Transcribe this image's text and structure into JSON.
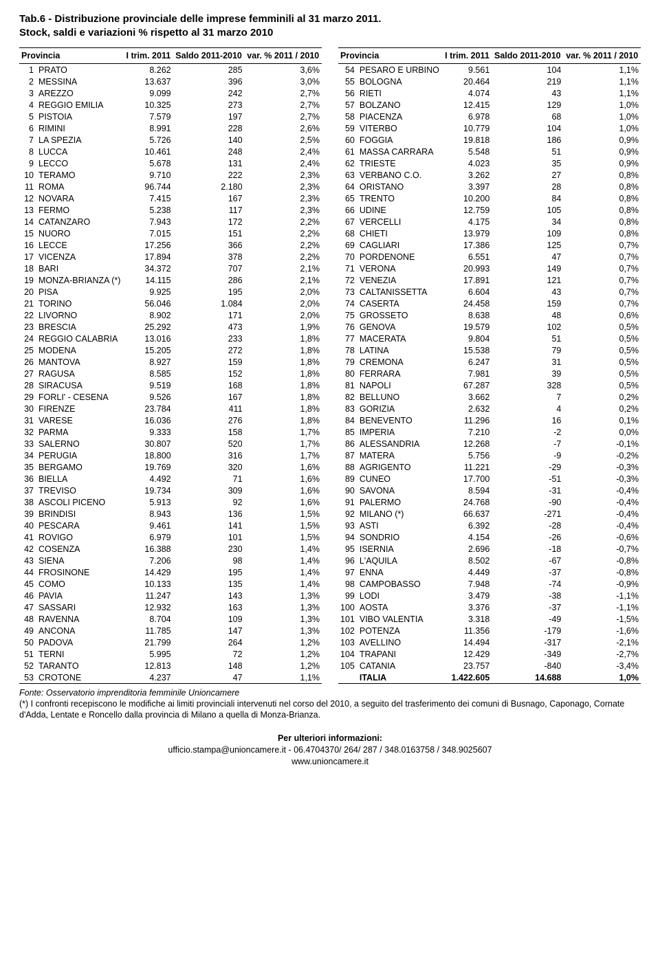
{
  "title_line1": "Tab.6 - Distribuzione provinciale delle imprese femminili al 31 marzo 2011.",
  "title_line2": "Stock, saldi e variazioni % rispetto al 31 marzo 2010",
  "headers": {
    "provincia": "Provincia",
    "itrim": "I trim. 2011",
    "saldo": "Saldo 2011-2010",
    "var": "var. % 2011 / 2010"
  },
  "table": {
    "left": [
      {
        "n": "1",
        "p": "PRATO",
        "v1": "8.262",
        "v2": "285",
        "v3": "3,6%"
      },
      {
        "n": "2",
        "p": "MESSINA",
        "v1": "13.637",
        "v2": "396",
        "v3": "3,0%"
      },
      {
        "n": "3",
        "p": "AREZZO",
        "v1": "9.099",
        "v2": "242",
        "v3": "2,7%"
      },
      {
        "n": "4",
        "p": "REGGIO EMILIA",
        "v1": "10.325",
        "v2": "273",
        "v3": "2,7%"
      },
      {
        "n": "5",
        "p": "PISTOIA",
        "v1": "7.579",
        "v2": "197",
        "v3": "2,7%"
      },
      {
        "n": "6",
        "p": "RIMINI",
        "v1": "8.991",
        "v2": "228",
        "v3": "2,6%"
      },
      {
        "n": "7",
        "p": "LA SPEZIA",
        "v1": "5.726",
        "v2": "140",
        "v3": "2,5%"
      },
      {
        "n": "8",
        "p": "LUCCA",
        "v1": "10.461",
        "v2": "248",
        "v3": "2,4%"
      },
      {
        "n": "9",
        "p": "LECCO",
        "v1": "5.678",
        "v2": "131",
        "v3": "2,4%"
      },
      {
        "n": "10",
        "p": "TERAMO",
        "v1": "9.710",
        "v2": "222",
        "v3": "2,3%"
      },
      {
        "n": "11",
        "p": "ROMA",
        "v1": "96.744",
        "v2": "2.180",
        "v3": "2,3%"
      },
      {
        "n": "12",
        "p": "NOVARA",
        "v1": "7.415",
        "v2": "167",
        "v3": "2,3%"
      },
      {
        "n": "13",
        "p": "FERMO",
        "v1": "5.238",
        "v2": "117",
        "v3": "2,3%"
      },
      {
        "n": "14",
        "p": "CATANZARO",
        "v1": "7.943",
        "v2": "172",
        "v3": "2,2%"
      },
      {
        "n": "15",
        "p": "NUORO",
        "v1": "7.015",
        "v2": "151",
        "v3": "2,2%"
      },
      {
        "n": "16",
        "p": "LECCE",
        "v1": "17.256",
        "v2": "366",
        "v3": "2,2%"
      },
      {
        "n": "17",
        "p": "VICENZA",
        "v1": "17.894",
        "v2": "378",
        "v3": "2,2%"
      },
      {
        "n": "18",
        "p": "BARI",
        "v1": "34.372",
        "v2": "707",
        "v3": "2,1%"
      },
      {
        "n": "19",
        "p": "MONZA-BRIANZA (*)",
        "v1": "14.115",
        "v2": "286",
        "v3": "2,1%"
      },
      {
        "n": "20",
        "p": "PISA",
        "v1": "9.925",
        "v2": "195",
        "v3": "2,0%"
      },
      {
        "n": "21",
        "p": "TORINO",
        "v1": "56.046",
        "v2": "1.084",
        "v3": "2,0%"
      },
      {
        "n": "22",
        "p": "LIVORNO",
        "v1": "8.902",
        "v2": "171",
        "v3": "2,0%"
      },
      {
        "n": "23",
        "p": "BRESCIA",
        "v1": "25.292",
        "v2": "473",
        "v3": "1,9%"
      },
      {
        "n": "24",
        "p": "REGGIO CALABRIA",
        "v1": "13.016",
        "v2": "233",
        "v3": "1,8%"
      },
      {
        "n": "25",
        "p": "MODENA",
        "v1": "15.205",
        "v2": "272",
        "v3": "1,8%"
      },
      {
        "n": "26",
        "p": "MANTOVA",
        "v1": "8.927",
        "v2": "159",
        "v3": "1,8%"
      },
      {
        "n": "27",
        "p": "RAGUSA",
        "v1": "8.585",
        "v2": "152",
        "v3": "1,8%"
      },
      {
        "n": "28",
        "p": "SIRACUSA",
        "v1": "9.519",
        "v2": "168",
        "v3": "1,8%"
      },
      {
        "n": "29",
        "p": "FORLI' - CESENA",
        "v1": "9.526",
        "v2": "167",
        "v3": "1,8%"
      },
      {
        "n": "30",
        "p": "FIRENZE",
        "v1": "23.784",
        "v2": "411",
        "v3": "1,8%"
      },
      {
        "n": "31",
        "p": "VARESE",
        "v1": "16.036",
        "v2": "276",
        "v3": "1,8%"
      },
      {
        "n": "32",
        "p": "PARMA",
        "v1": "9.333",
        "v2": "158",
        "v3": "1,7%"
      },
      {
        "n": "33",
        "p": "SALERNO",
        "v1": "30.807",
        "v2": "520",
        "v3": "1,7%"
      },
      {
        "n": "34",
        "p": "PERUGIA",
        "v1": "18.800",
        "v2": "316",
        "v3": "1,7%"
      },
      {
        "n": "35",
        "p": "BERGAMO",
        "v1": "19.769",
        "v2": "320",
        "v3": "1,6%"
      },
      {
        "n": "36",
        "p": "BIELLA",
        "v1": "4.492",
        "v2": "71",
        "v3": "1,6%"
      },
      {
        "n": "37",
        "p": "TREVISO",
        "v1": "19.734",
        "v2": "309",
        "v3": "1,6%"
      },
      {
        "n": "38",
        "p": "ASCOLI PICENO",
        "v1": "5.913",
        "v2": "92",
        "v3": "1,6%"
      },
      {
        "n": "39",
        "p": "BRINDISI",
        "v1": "8.943",
        "v2": "136",
        "v3": "1,5%"
      },
      {
        "n": "40",
        "p": "PESCARA",
        "v1": "9.461",
        "v2": "141",
        "v3": "1,5%"
      },
      {
        "n": "41",
        "p": "ROVIGO",
        "v1": "6.979",
        "v2": "101",
        "v3": "1,5%"
      },
      {
        "n": "42",
        "p": "COSENZA",
        "v1": "16.388",
        "v2": "230",
        "v3": "1,4%"
      },
      {
        "n": "43",
        "p": "SIENA",
        "v1": "7.206",
        "v2": "98",
        "v3": "1,4%"
      },
      {
        "n": "44",
        "p": "FROSINONE",
        "v1": "14.429",
        "v2": "195",
        "v3": "1,4%"
      },
      {
        "n": "45",
        "p": "COMO",
        "v1": "10.133",
        "v2": "135",
        "v3": "1,4%"
      },
      {
        "n": "46",
        "p": "PAVIA",
        "v1": "11.247",
        "v2": "143",
        "v3": "1,3%"
      },
      {
        "n": "47",
        "p": "SASSARI",
        "v1": "12.932",
        "v2": "163",
        "v3": "1,3%"
      },
      {
        "n": "48",
        "p": "RAVENNA",
        "v1": "8.704",
        "v2": "109",
        "v3": "1,3%"
      },
      {
        "n": "49",
        "p": "ANCONA",
        "v1": "11.785",
        "v2": "147",
        "v3": "1,3%"
      },
      {
        "n": "50",
        "p": "PADOVA",
        "v1": "21.799",
        "v2": "264",
        "v3": "1,2%"
      },
      {
        "n": "51",
        "p": "TERNI",
        "v1": "5.995",
        "v2": "72",
        "v3": "1,2%"
      },
      {
        "n": "52",
        "p": "TARANTO",
        "v1": "12.813",
        "v2": "148",
        "v3": "1,2%"
      },
      {
        "n": "53",
        "p": "CROTONE",
        "v1": "4.237",
        "v2": "47",
        "v3": "1,1%"
      }
    ],
    "right": [
      {
        "n": "54",
        "p": "PESARO E URBINO",
        "v1": "9.561",
        "v2": "104",
        "v3": "1,1%"
      },
      {
        "n": "55",
        "p": "BOLOGNA",
        "v1": "20.464",
        "v2": "219",
        "v3": "1,1%"
      },
      {
        "n": "56",
        "p": "RIETI",
        "v1": "4.074",
        "v2": "43",
        "v3": "1,1%"
      },
      {
        "n": "57",
        "p": "BOLZANO",
        "v1": "12.415",
        "v2": "129",
        "v3": "1,0%"
      },
      {
        "n": "58",
        "p": "PIACENZA",
        "v1": "6.978",
        "v2": "68",
        "v3": "1,0%"
      },
      {
        "n": "59",
        "p": "VITERBO",
        "v1": "10.779",
        "v2": "104",
        "v3": "1,0%"
      },
      {
        "n": "60",
        "p": "FOGGIA",
        "v1": "19.818",
        "v2": "186",
        "v3": "0,9%"
      },
      {
        "n": "61",
        "p": "MASSA CARRARA",
        "v1": "5.548",
        "v2": "51",
        "v3": "0,9%"
      },
      {
        "n": "62",
        "p": "TRIESTE",
        "v1": "4.023",
        "v2": "35",
        "v3": "0,9%"
      },
      {
        "n": "63",
        "p": "VERBANO C.O.",
        "v1": "3.262",
        "v2": "27",
        "v3": "0,8%"
      },
      {
        "n": "64",
        "p": "ORISTANO",
        "v1": "3.397",
        "v2": "28",
        "v3": "0,8%"
      },
      {
        "n": "65",
        "p": "TRENTO",
        "v1": "10.200",
        "v2": "84",
        "v3": "0,8%"
      },
      {
        "n": "66",
        "p": "UDINE",
        "v1": "12.759",
        "v2": "105",
        "v3": "0,8%"
      },
      {
        "n": "67",
        "p": "VERCELLI",
        "v1": "4.175",
        "v2": "34",
        "v3": "0,8%"
      },
      {
        "n": "68",
        "p": "CHIETI",
        "v1": "13.979",
        "v2": "109",
        "v3": "0,8%"
      },
      {
        "n": "69",
        "p": "CAGLIARI",
        "v1": "17.386",
        "v2": "125",
        "v3": "0,7%"
      },
      {
        "n": "70",
        "p": "PORDENONE",
        "v1": "6.551",
        "v2": "47",
        "v3": "0,7%"
      },
      {
        "n": "71",
        "p": "VERONA",
        "v1": "20.993",
        "v2": "149",
        "v3": "0,7%"
      },
      {
        "n": "72",
        "p": "VENEZIA",
        "v1": "17.891",
        "v2": "121",
        "v3": "0,7%"
      },
      {
        "n": "73",
        "p": "CALTANISSETTA",
        "v1": "6.604",
        "v2": "43",
        "v3": "0,7%"
      },
      {
        "n": "74",
        "p": "CASERTA",
        "v1": "24.458",
        "v2": "159",
        "v3": "0,7%"
      },
      {
        "n": "75",
        "p": "GROSSETO",
        "v1": "8.638",
        "v2": "48",
        "v3": "0,6%"
      },
      {
        "n": "76",
        "p": "GENOVA",
        "v1": "19.579",
        "v2": "102",
        "v3": "0,5%"
      },
      {
        "n": "77",
        "p": "MACERATA",
        "v1": "9.804",
        "v2": "51",
        "v3": "0,5%"
      },
      {
        "n": "78",
        "p": "LATINA",
        "v1": "15.538",
        "v2": "79",
        "v3": "0,5%"
      },
      {
        "n": "79",
        "p": "CREMONA",
        "v1": "6.247",
        "v2": "31",
        "v3": "0,5%"
      },
      {
        "n": "80",
        "p": "FERRARA",
        "v1": "7.981",
        "v2": "39",
        "v3": "0,5%"
      },
      {
        "n": "81",
        "p": "NAPOLI",
        "v1": "67.287",
        "v2": "328",
        "v3": "0,5%"
      },
      {
        "n": "82",
        "p": "BELLUNO",
        "v1": "3.662",
        "v2": "7",
        "v3": "0,2%"
      },
      {
        "n": "83",
        "p": "GORIZIA",
        "v1": "2.632",
        "v2": "4",
        "v3": "0,2%"
      },
      {
        "n": "84",
        "p": "BENEVENTO",
        "v1": "11.296",
        "v2": "16",
        "v3": "0,1%"
      },
      {
        "n": "85",
        "p": "IMPERIA",
        "v1": "7.210",
        "v2": "-2",
        "v3": "0,0%"
      },
      {
        "n": "86",
        "p": "ALESSANDRIA",
        "v1": "12.268",
        "v2": "-7",
        "v3": "-0,1%"
      },
      {
        "n": "87",
        "p": "MATERA",
        "v1": "5.756",
        "v2": "-9",
        "v3": "-0,2%"
      },
      {
        "n": "88",
        "p": "AGRIGENTO",
        "v1": "11.221",
        "v2": "-29",
        "v3": "-0,3%"
      },
      {
        "n": "89",
        "p": "CUNEO",
        "v1": "17.700",
        "v2": "-51",
        "v3": "-0,3%"
      },
      {
        "n": "90",
        "p": "SAVONA",
        "v1": "8.594",
        "v2": "-31",
        "v3": "-0,4%"
      },
      {
        "n": "91",
        "p": "PALERMO",
        "v1": "24.768",
        "v2": "-90",
        "v3": "-0,4%"
      },
      {
        "n": "92",
        "p": "MILANO (*)",
        "v1": "66.637",
        "v2": "-271",
        "v3": "-0,4%"
      },
      {
        "n": "93",
        "p": "ASTI",
        "v1": "6.392",
        "v2": "-28",
        "v3": "-0,4%"
      },
      {
        "n": "94",
        "p": "SONDRIO",
        "v1": "4.154",
        "v2": "-26",
        "v3": "-0,6%"
      },
      {
        "n": "95",
        "p": "ISERNIA",
        "v1": "2.696",
        "v2": "-18",
        "v3": "-0,7%"
      },
      {
        "n": "96",
        "p": "L'AQUILA",
        "v1": "8.502",
        "v2": "-67",
        "v3": "-0,8%"
      },
      {
        "n": "97",
        "p": "ENNA",
        "v1": "4.449",
        "v2": "-37",
        "v3": "-0,8%"
      },
      {
        "n": "98",
        "p": "CAMPOBASSO",
        "v1": "7.948",
        "v2": "-74",
        "v3": "-0,9%"
      },
      {
        "n": "99",
        "p": "LODI",
        "v1": "3.479",
        "v2": "-38",
        "v3": "-1,1%"
      },
      {
        "n": "100",
        "p": "AOSTA",
        "v1": "3.376",
        "v2": "-37",
        "v3": "-1,1%"
      },
      {
        "n": "101",
        "p": "VIBO VALENTIA",
        "v1": "3.318",
        "v2": "-49",
        "v3": "-1,5%"
      },
      {
        "n": "102",
        "p": "POTENZA",
        "v1": "11.356",
        "v2": "-179",
        "v3": "-1,6%"
      },
      {
        "n": "103",
        "p": "AVELLINO",
        "v1": "14.494",
        "v2": "-317",
        "v3": "-2,1%"
      },
      {
        "n": "104",
        "p": "TRAPANI",
        "v1": "12.429",
        "v2": "-349",
        "v3": "-2,7%"
      },
      {
        "n": "105",
        "p": "CATANIA",
        "v1": "23.757",
        "v2": "-840",
        "v3": "-3,4%"
      }
    ],
    "total": {
      "p": "ITALIA",
      "v1": "1.422.605",
      "v2": "14.688",
      "v3": "1,0%"
    }
  },
  "footnote": {
    "source": "Fonte: Osservatorio imprenditoria femminile Unioncamere",
    "note": "(*) I confronti recepiscono le modifiche ai limiti provinciali intervenuti nel corso del 2010, a seguito del trasferimento dei comuni di Busnago, Caponago, Cornate d'Adda, Lentate e Roncello dalla provincia di Milano a quella di Monza-Brianza."
  },
  "contact": {
    "header": "Per ulteriori informazioni:",
    "line1": "ufficio.stampa@unioncamere.it  -  06.4704370/ 264/ 287 / 348.0163758 / 348.9025607",
    "line2": "www.unioncamere.it"
  }
}
